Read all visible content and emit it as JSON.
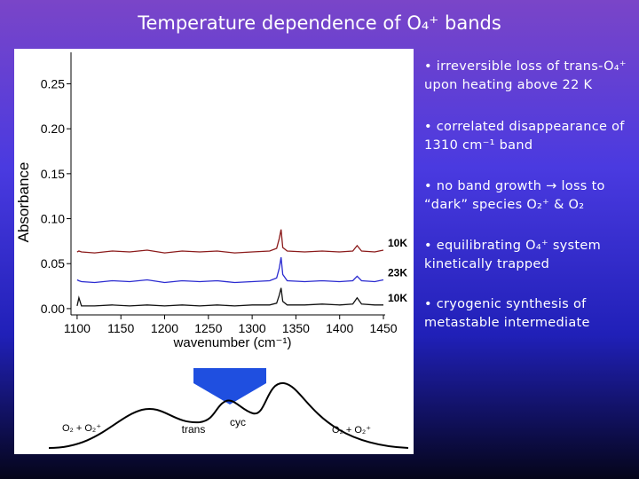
{
  "title": "Temperature dependence of O₄⁺ bands",
  "chart_data": {
    "type": "line",
    "xlabel": "wavenumber (cm⁻¹)",
    "ylabel": "Absorbance",
    "x": [
      1100,
      1102,
      1105,
      1120,
      1140,
      1160,
      1180,
      1200,
      1220,
      1240,
      1260,
      1280,
      1300,
      1320,
      1328,
      1331,
      1333,
      1335,
      1340,
      1360,
      1380,
      1400,
      1415,
      1420,
      1425,
      1440,
      1450
    ],
    "series": [
      {
        "name": "10K",
        "color": "#8b1a1a",
        "values": [
          0.063,
          0.064,
          0.063,
          0.062,
          0.064,
          0.063,
          0.065,
          0.062,
          0.064,
          0.063,
          0.064,
          0.062,
          0.063,
          0.064,
          0.067,
          0.078,
          0.088,
          0.068,
          0.064,
          0.063,
          0.064,
          0.063,
          0.064,
          0.07,
          0.064,
          0.063,
          0.065
        ]
      },
      {
        "name": "23K",
        "color": "#2a2ad0",
        "values": [
          0.032,
          0.031,
          0.03,
          0.029,
          0.031,
          0.03,
          0.032,
          0.029,
          0.031,
          0.03,
          0.031,
          0.029,
          0.03,
          0.031,
          0.034,
          0.045,
          0.057,
          0.038,
          0.031,
          0.03,
          0.031,
          0.03,
          0.031,
          0.036,
          0.031,
          0.03,
          0.032
        ]
      },
      {
        "name": "10K",
        "color": "#111111",
        "values": [
          0.003,
          0.012,
          0.003,
          0.003,
          0.004,
          0.003,
          0.004,
          0.003,
          0.004,
          0.003,
          0.004,
          0.003,
          0.004,
          0.004,
          0.006,
          0.015,
          0.023,
          0.008,
          0.004,
          0.004,
          0.005,
          0.004,
          0.005,
          0.012,
          0.005,
          0.004,
          0.004
        ]
      }
    ],
    "xlim": [
      1093,
      1452
    ],
    "xticks": [
      1100,
      1150,
      1200,
      1250,
      1300,
      1350,
      1400,
      1450
    ],
    "ylim": [
      -0.007,
      0.285
    ],
    "yticks": [
      {
        "value": 0,
        "label": "0.00"
      },
      0.05,
      {
        "value": 0.1,
        "label": "0.10"
      },
      0.15,
      {
        "value": 0.2,
        "label": "0.20"
      },
      0.25
    ],
    "grid": false
  },
  "bullets": [
    "irreversible loss of trans-O₄⁺ upon heating above 22 K",
    "correlated disappearance of 1310 cm⁻¹ band",
    "no band growth → loss to “dark” species O₂⁺ & O₂",
    "equilibrating O₄⁺ system kinetically trapped",
    "cryogenic synthesis of metastable intermediate"
  ],
  "diagram": {
    "labels": [
      "O₂ + O₂⁺",
      "trans",
      "cyc",
      "O₂ + O₂⁺"
    ]
  }
}
